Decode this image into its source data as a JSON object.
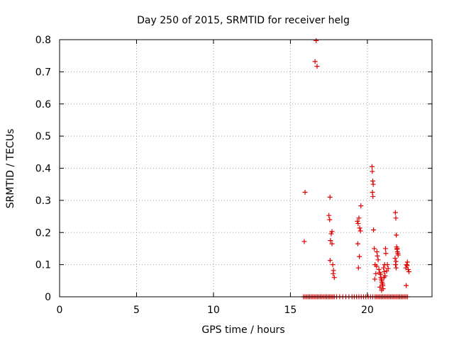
{
  "chart_data": {
    "type": "scatter",
    "title": "Day 250 of 2015, SRMTID for receiver helg",
    "xlabel": "GPS time / hours",
    "ylabel": "SRMTID / TECUs",
    "xlim": [
      0,
      24.2
    ],
    "ylim": [
      0,
      0.8
    ],
    "xticks": [
      0,
      5,
      10,
      15,
      20
    ],
    "xtick_labels": [
      "0",
      "5",
      "10",
      "15",
      "20"
    ],
    "yticks": [
      0,
      0.1,
      0.2,
      0.3,
      0.4,
      0.5,
      0.6,
      0.7,
      0.8
    ],
    "ytick_labels": [
      "0",
      "0.1",
      "0.2",
      "0.3",
      "0.4",
      "0.5",
      "0.6",
      "0.7",
      "0.8"
    ],
    "grid": true,
    "marker": "+",
    "marker_color": "#e00000",
    "series": [
      {
        "name": "SRMTID",
        "points": [
          [
            16.67,
            0.797
          ],
          [
            16.6,
            0.732
          ],
          [
            16.73,
            0.717
          ],
          [
            15.95,
            0.325
          ],
          [
            15.9,
            0.172
          ],
          [
            17.5,
            0.253
          ],
          [
            17.55,
            0.24
          ],
          [
            17.57,
            0.31
          ],
          [
            17.7,
            0.203
          ],
          [
            17.65,
            0.196
          ],
          [
            17.6,
            0.175
          ],
          [
            17.7,
            0.165
          ],
          [
            17.58,
            0.113
          ],
          [
            17.75,
            0.1
          ],
          [
            17.8,
            0.082
          ],
          [
            17.78,
            0.072
          ],
          [
            17.85,
            0.06
          ],
          [
            19.35,
            0.235
          ],
          [
            19.45,
            0.245
          ],
          [
            19.4,
            0.228
          ],
          [
            19.5,
            0.214
          ],
          [
            19.55,
            0.205
          ],
          [
            19.58,
            0.283
          ],
          [
            19.38,
            0.165
          ],
          [
            19.48,
            0.125
          ],
          [
            19.42,
            0.09
          ],
          [
            20.3,
            0.405
          ],
          [
            20.32,
            0.39
          ],
          [
            20.35,
            0.36
          ],
          [
            20.38,
            0.35
          ],
          [
            20.33,
            0.325
          ],
          [
            20.36,
            0.312
          ],
          [
            20.4,
            0.208
          ],
          [
            20.45,
            0.15
          ],
          [
            20.5,
            0.1
          ],
          [
            20.55,
            0.072
          ],
          [
            20.48,
            0.055
          ],
          [
            20.62,
            0.14
          ],
          [
            20.65,
            0.127
          ],
          [
            20.7,
            0.115
          ],
          [
            20.6,
            0.095
          ],
          [
            20.75,
            0.085
          ],
          [
            20.8,
            0.075
          ],
          [
            20.85,
            0.07
          ],
          [
            20.88,
            0.06
          ],
          [
            20.9,
            0.055
          ],
          [
            20.93,
            0.05
          ],
          [
            20.95,
            0.045
          ],
          [
            20.98,
            0.04
          ],
          [
            21.0,
            0.035
          ],
          [
            20.82,
            0.03
          ],
          [
            20.92,
            0.02
          ],
          [
            21.05,
            0.09
          ],
          [
            21.1,
            0.078
          ],
          [
            21.12,
            0.1
          ],
          [
            21.15,
            0.065
          ],
          [
            21.18,
            0.15
          ],
          [
            21.2,
            0.135
          ],
          [
            21.25,
            0.08
          ],
          [
            21.3,
            0.1
          ],
          [
            21.35,
            0.088
          ],
          [
            21.08,
            0.06
          ],
          [
            21.02,
            0.025
          ],
          [
            21.82,
            0.262
          ],
          [
            21.85,
            0.245
          ],
          [
            21.88,
            0.192
          ],
          [
            21.9,
            0.155
          ],
          [
            21.92,
            0.148
          ],
          [
            21.95,
            0.14
          ],
          [
            21.98,
            0.135
          ],
          [
            22.0,
            0.13
          ],
          [
            21.8,
            0.12
          ],
          [
            21.86,
            0.11
          ],
          [
            21.83,
            0.1
          ],
          [
            21.87,
            0.09
          ],
          [
            21.94,
            0.15
          ],
          [
            22.5,
            0.09
          ],
          [
            22.55,
            0.1
          ],
          [
            22.6,
            0.108
          ],
          [
            22.65,
            0.085
          ],
          [
            22.7,
            0.078
          ],
          [
            22.58,
            0.097
          ],
          [
            22.52,
            0.035
          ]
        ],
        "zero_value_times": [
          15.85,
          15.95,
          16.05,
          16.15,
          16.25,
          16.35,
          16.45,
          16.55,
          16.65,
          16.75,
          16.85,
          16.95,
          17.05,
          17.15,
          17.25,
          17.35,
          17.45,
          17.55,
          17.65,
          17.75,
          17.85,
          18.0,
          18.2,
          18.4,
          18.6,
          18.8,
          19.0,
          19.15,
          19.3,
          19.45,
          19.6,
          19.75,
          19.9,
          20.05,
          20.2,
          20.35,
          20.5,
          20.6,
          20.7,
          20.8,
          20.9,
          21.0,
          21.1,
          21.2,
          21.3,
          21.4,
          21.5,
          21.6,
          21.7,
          21.8,
          21.9,
          22.0,
          22.1,
          22.2,
          22.3,
          22.4,
          22.5,
          22.6
        ]
      }
    ]
  }
}
